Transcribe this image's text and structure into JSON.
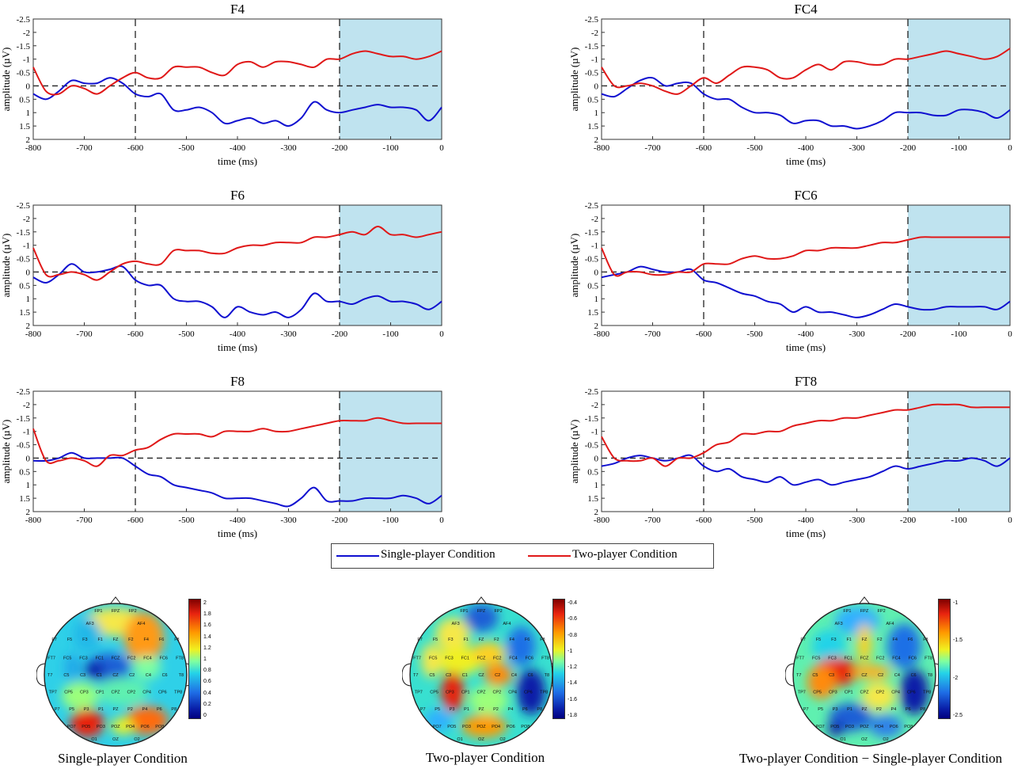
{
  "chart_data": {
    "type": "line",
    "xlabel": "time (ms)",
    "ylabel": "amplitude (µV)",
    "xlim": [
      -800,
      0
    ],
    "ylim": [
      -2.5,
      2
    ],
    "y_axis_inverted": true,
    "x_ticks": [
      -800,
      -700,
      -600,
      -500,
      -400,
      -300,
      -200,
      -100,
      0
    ],
    "x_tick_labels": [
      "-800",
      "-700",
      "-600",
      "-500",
      "-400",
      "-300",
      "-200",
      "-100",
      "0"
    ],
    "y_ticks": [
      -2.5,
      -2,
      -1.5,
      -1,
      -0.5,
      0,
      0.5,
      1,
      1.5,
      2
    ],
    "y_tick_labels": [
      "-2.5",
      "-2",
      "-1.5",
      "-1",
      "-0.5",
      "0",
      "0.5",
      "1",
      "1.5",
      "2"
    ],
    "dashed_vertical_lines": [
      -600,
      -200
    ],
    "highlight_window": [
      -200,
      0
    ],
    "highlight_color": "#bfe3ef",
    "legend": {
      "placement": "bottom-center",
      "entries": [
        {
          "name": "Single-player Condition",
          "color": "#1010d0"
        },
        {
          "name": "Two-player Condition",
          "color": "#e01818"
        }
      ]
    },
    "panels": [
      {
        "title": "F4",
        "x": [
          -800,
          -775,
          -750,
          -725,
          -700,
          -675,
          -650,
          -625,
          -600,
          -575,
          -550,
          -525,
          -500,
          -475,
          -450,
          -425,
          -400,
          -375,
          -350,
          -325,
          -300,
          -275,
          -250,
          -225,
          -200,
          -175,
          -150,
          -125,
          -100,
          -75,
          -50,
          -25,
          0
        ],
        "series": [
          {
            "name": "Single-player Condition",
            "values": [
              0.3,
              0.5,
              0.2,
              -0.2,
              -0.1,
              -0.1,
              -0.3,
              -0.1,
              0.3,
              0.4,
              0.3,
              0.9,
              0.9,
              0.8,
              1.0,
              1.4,
              1.3,
              1.2,
              1.4,
              1.3,
              1.5,
              1.2,
              0.6,
              0.9,
              1.0,
              0.9,
              0.8,
              0.7,
              0.8,
              0.8,
              0.9,
              1.3,
              0.8
            ]
          },
          {
            "name": "Two-player Condition",
            "values": [
              -0.7,
              0.2,
              0.3,
              0.0,
              0.1,
              0.3,
              0.0,
              -0.3,
              -0.5,
              -0.3,
              -0.3,
              -0.7,
              -0.7,
              -0.7,
              -0.5,
              -0.4,
              -0.8,
              -0.9,
              -0.7,
              -0.9,
              -0.9,
              -0.8,
              -0.7,
              -1.0,
              -1.0,
              -1.2,
              -1.3,
              -1.2,
              -1.1,
              -1.1,
              -1.0,
              -1.1,
              -1.3
            ]
          }
        ]
      },
      {
        "title": "FC4",
        "x": [
          -800,
          -775,
          -750,
          -725,
          -700,
          -675,
          -650,
          -625,
          -600,
          -575,
          -550,
          -525,
          -500,
          -475,
          -450,
          -425,
          -400,
          -375,
          -350,
          -325,
          -300,
          -275,
          -250,
          -225,
          -200,
          -175,
          -150,
          -125,
          -100,
          -75,
          -50,
          -25,
          0
        ],
        "series": [
          {
            "name": "Single-player Condition",
            "values": [
              0.3,
              0.4,
              0.1,
              -0.2,
              -0.3,
              0.0,
              -0.1,
              -0.1,
              0.3,
              0.5,
              0.5,
              0.8,
              1.0,
              1.0,
              1.1,
              1.4,
              1.3,
              1.3,
              1.5,
              1.5,
              1.6,
              1.5,
              1.3,
              1.0,
              1.0,
              1.0,
              1.1,
              1.1,
              0.9,
              0.9,
              1.0,
              1.2,
              0.9
            ]
          },
          {
            "name": "Two-player Condition",
            "values": [
              -0.7,
              0.0,
              0.0,
              -0.1,
              0.0,
              0.2,
              0.3,
              0.0,
              -0.3,
              -0.1,
              -0.4,
              -0.7,
              -0.7,
              -0.6,
              -0.3,
              -0.3,
              -0.6,
              -0.8,
              -0.6,
              -0.9,
              -0.9,
              -0.8,
              -0.8,
              -1.0,
              -1.0,
              -1.1,
              -1.2,
              -1.3,
              -1.2,
              -1.1,
              -1.0,
              -1.1,
              -1.4
            ]
          }
        ]
      },
      {
        "title": "F6",
        "x": [
          -800,
          -775,
          -750,
          -725,
          -700,
          -675,
          -650,
          -625,
          -600,
          -575,
          -550,
          -525,
          -500,
          -475,
          -450,
          -425,
          -400,
          -375,
          -350,
          -325,
          -300,
          -275,
          -250,
          -225,
          -200,
          -175,
          -150,
          -125,
          -100,
          -75,
          -50,
          -25,
          0
        ],
        "series": [
          {
            "name": "Single-player Condition",
            "values": [
              0.2,
              0.4,
              0.1,
              -0.3,
              0.0,
              0.0,
              -0.1,
              -0.2,
              0.3,
              0.5,
              0.5,
              1.0,
              1.1,
              1.1,
              1.3,
              1.7,
              1.3,
              1.5,
              1.6,
              1.5,
              1.7,
              1.4,
              0.8,
              1.1,
              1.1,
              1.2,
              1.0,
              0.9,
              1.1,
              1.1,
              1.2,
              1.4,
              1.1
            ]
          },
          {
            "name": "Two-player Condition",
            "values": [
              -0.9,
              0.1,
              0.1,
              0.0,
              0.1,
              0.3,
              0.0,
              -0.3,
              -0.4,
              -0.3,
              -0.3,
              -0.8,
              -0.8,
              -0.8,
              -0.7,
              -0.7,
              -0.9,
              -1.0,
              -1.0,
              -1.1,
              -1.1,
              -1.1,
              -1.3,
              -1.3,
              -1.4,
              -1.5,
              -1.4,
              -1.7,
              -1.4,
              -1.4,
              -1.3,
              -1.4,
              -1.5
            ]
          }
        ]
      },
      {
        "title": "FC6",
        "x": [
          -800,
          -775,
          -750,
          -725,
          -700,
          -675,
          -650,
          -625,
          -600,
          -575,
          -550,
          -525,
          -500,
          -475,
          -450,
          -425,
          -400,
          -375,
          -350,
          -325,
          -300,
          -275,
          -250,
          -225,
          -200,
          -175,
          -150,
          -125,
          -100,
          -75,
          -50,
          -25,
          0
        ],
        "series": [
          {
            "name": "Single-player Condition",
            "values": [
              0.2,
              0.1,
              0.0,
              -0.2,
              -0.1,
              0.0,
              0.0,
              -0.1,
              0.3,
              0.4,
              0.6,
              0.8,
              0.9,
              1.1,
              1.2,
              1.5,
              1.3,
              1.5,
              1.5,
              1.6,
              1.7,
              1.6,
              1.4,
              1.2,
              1.3,
              1.4,
              1.4,
              1.3,
              1.3,
              1.3,
              1.3,
              1.4,
              1.1
            ]
          },
          {
            "name": "Two-player Condition",
            "values": [
              -0.9,
              0.1,
              0.0,
              0.0,
              0.1,
              0.1,
              0.0,
              0.0,
              -0.3,
              -0.3,
              -0.3,
              -0.5,
              -0.6,
              -0.5,
              -0.5,
              -0.6,
              -0.8,
              -0.8,
              -0.9,
              -0.9,
              -0.9,
              -1.0,
              -1.1,
              -1.1,
              -1.2,
              -1.3,
              -1.3,
              -1.3,
              -1.3,
              -1.3,
              -1.3,
              -1.3,
              -1.3
            ]
          }
        ]
      },
      {
        "title": "F8",
        "x": [
          -800,
          -775,
          -750,
          -725,
          -700,
          -675,
          -650,
          -625,
          -600,
          -575,
          -550,
          -525,
          -500,
          -475,
          -450,
          -425,
          -400,
          -375,
          -350,
          -325,
          -300,
          -275,
          -250,
          -225,
          -200,
          -175,
          -150,
          -125,
          -100,
          -75,
          -50,
          -25,
          0
        ],
        "series": [
          {
            "name": "Single-player Condition",
            "values": [
              0.1,
              0.1,
              0.0,
              -0.2,
              0.0,
              0.0,
              0.0,
              0.0,
              0.3,
              0.6,
              0.7,
              1.0,
              1.1,
              1.2,
              1.3,
              1.5,
              1.5,
              1.5,
              1.6,
              1.7,
              1.8,
              1.5,
              1.1,
              1.6,
              1.6,
              1.6,
              1.5,
              1.5,
              1.5,
              1.4,
              1.5,
              1.7,
              1.4
            ]
          },
          {
            "name": "Two-player Condition",
            "values": [
              -1.1,
              0.1,
              0.1,
              0.0,
              0.1,
              0.3,
              -0.1,
              -0.1,
              -0.3,
              -0.4,
              -0.7,
              -0.9,
              -0.9,
              -0.9,
              -0.8,
              -1.0,
              -1.0,
              -1.0,
              -1.1,
              -1.0,
              -1.0,
              -1.1,
              -1.2,
              -1.3,
              -1.4,
              -1.4,
              -1.4,
              -1.5,
              -1.4,
              -1.3,
              -1.3,
              -1.3,
              -1.3
            ]
          }
        ]
      },
      {
        "title": "FT8",
        "x": [
          -800,
          -775,
          -750,
          -725,
          -700,
          -675,
          -650,
          -625,
          -600,
          -575,
          -550,
          -525,
          -500,
          -475,
          -450,
          -425,
          -400,
          -375,
          -350,
          -325,
          -300,
          -275,
          -250,
          -225,
          -200,
          -175,
          -150,
          -125,
          -100,
          -75,
          -50,
          -25,
          0
        ],
        "series": [
          {
            "name": "Single-player Condition",
            "values": [
              0.3,
              0.2,
              0.0,
              -0.1,
              0.0,
              0.1,
              0.0,
              -0.1,
              0.3,
              0.5,
              0.4,
              0.7,
              0.8,
              0.9,
              0.7,
              1.0,
              0.9,
              0.8,
              1.0,
              0.9,
              0.8,
              0.7,
              0.5,
              0.3,
              0.4,
              0.3,
              0.2,
              0.1,
              0.1,
              0.0,
              0.1,
              0.3,
              0.0
            ]
          },
          {
            "name": "Two-player Condition",
            "values": [
              -0.8,
              0.0,
              0.1,
              0.1,
              0.0,
              0.3,
              0.0,
              0.0,
              -0.2,
              -0.5,
              -0.6,
              -0.9,
              -0.9,
              -1.0,
              -1.0,
              -1.2,
              -1.3,
              -1.4,
              -1.4,
              -1.5,
              -1.5,
              -1.6,
              -1.7,
              -1.8,
              -1.8,
              -1.9,
              -2.0,
              -2.0,
              -2.0,
              -1.9,
              -1.9,
              -1.9,
              -1.9
            ]
          }
        ]
      }
    ]
  },
  "topomaps": [
    {
      "caption": "Single-player Condition",
      "scale_ticks": [
        "2",
        "1.8",
        "1.6",
        "1.4",
        "1.2",
        "1",
        "0.8",
        "0.6",
        "0.4",
        "0.2",
        "0"
      ]
    },
    {
      "caption": "Two-player Condition",
      "scale_ticks": [
        "-0.4",
        "-0.6",
        "-0.8",
        "-1",
        "-1.2",
        "-1.4",
        "-1.6",
        "-1.8"
      ]
    },
    {
      "caption": "Two-player Condition − Single-player Condition",
      "scale_ticks": [
        "-1",
        "-1.5",
        "-2",
        "-2.5"
      ]
    }
  ],
  "electrode_labels": [
    "FP1",
    "FPZ",
    "FP2",
    "AF3",
    "AF4",
    "F7",
    "F5",
    "F3",
    "F1",
    "FZ",
    "F2",
    "F4",
    "F6",
    "F8",
    "FT7",
    "FC5",
    "FC3",
    "FC1",
    "FCZ",
    "FC2",
    "FC4",
    "FC6",
    "FT8",
    "T7",
    "C5",
    "C3",
    "C1",
    "CZ",
    "C2",
    "C4",
    "C6",
    "T8",
    "TP7",
    "CP5",
    "CP3",
    "CP1",
    "CPZ",
    "CP2",
    "CP4",
    "CP6",
    "TP8",
    "P7",
    "P5",
    "P3",
    "P1",
    "PZ",
    "P2",
    "P4",
    "P6",
    "P8",
    "PO7",
    "PO5",
    "PO3",
    "POZ",
    "PO4",
    "PO6",
    "PO8",
    "O1",
    "OZ",
    "O2"
  ]
}
